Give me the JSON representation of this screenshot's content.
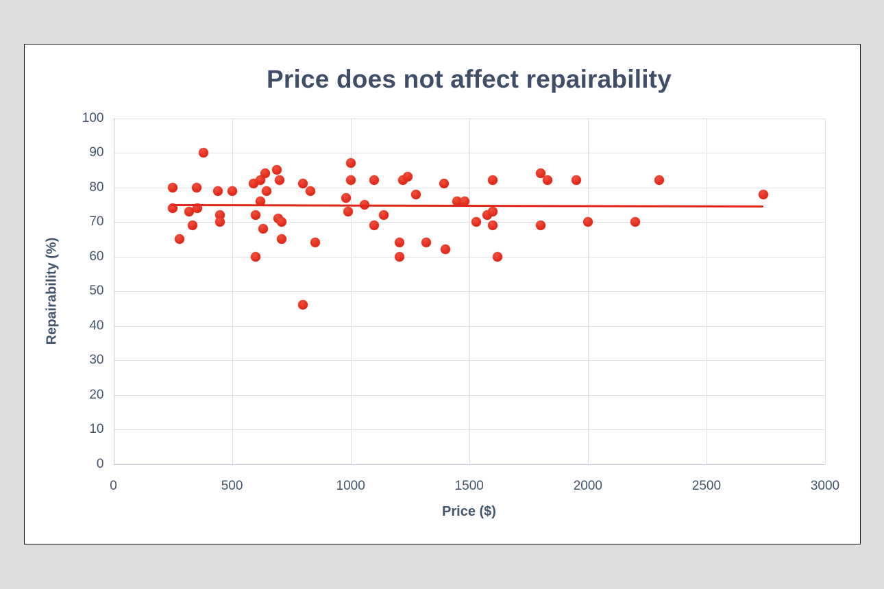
{
  "theme": {
    "page_background": "#dedede",
    "card_background": "#ffffff",
    "card_border": "#111111",
    "title_color": "#3f4d66",
    "tick_color": "#44546a",
    "grid_color": "#dde2ea",
    "axis_line_color": "#bcc6d4",
    "point_color": "#e0301e",
    "trend_color": "#e0261a"
  },
  "chart_data": {
    "type": "scatter",
    "title": "Price does not affect repairability",
    "xlabel": "Price ($)",
    "ylabel": "Repairability (%)",
    "xlim": [
      0,
      3000
    ],
    "ylim": [
      0,
      100
    ],
    "x_ticks": [
      0,
      500,
      1000,
      1500,
      2000,
      2500,
      3000
    ],
    "y_ticks": [
      0,
      10,
      20,
      30,
      40,
      50,
      60,
      70,
      80,
      90,
      100
    ],
    "grid": true,
    "legend": "none",
    "series": [
      {
        "name": "repairability-scatter",
        "type": "scatter",
        "color": "#e0301e",
        "points": [
          [
            250,
            80
          ],
          [
            250,
            74
          ],
          [
            280,
            65
          ],
          [
            320,
            73
          ],
          [
            335,
            69
          ],
          [
            350,
            80
          ],
          [
            355,
            74
          ],
          [
            380,
            90
          ],
          [
            440,
            79
          ],
          [
            450,
            72
          ],
          [
            450,
            70
          ],
          [
            500,
            79
          ],
          [
            590,
            81
          ],
          [
            600,
            72
          ],
          [
            600,
            60
          ],
          [
            620,
            76
          ],
          [
            620,
            82
          ],
          [
            630,
            68
          ],
          [
            640,
            84
          ],
          [
            645,
            79
          ],
          [
            690,
            85
          ],
          [
            700,
            82
          ],
          [
            695,
            71
          ],
          [
            710,
            70
          ],
          [
            710,
            65
          ],
          [
            800,
            81
          ],
          [
            800,
            46
          ],
          [
            830,
            79
          ],
          [
            850,
            64
          ],
          [
            980,
            77
          ],
          [
            990,
            73
          ],
          [
            1000,
            87
          ],
          [
            1000,
            82
          ],
          [
            1060,
            75
          ],
          [
            1100,
            82
          ],
          [
            1100,
            69
          ],
          [
            1140,
            72
          ],
          [
            1205,
            64
          ],
          [
            1205,
            60
          ],
          [
            1220,
            82
          ],
          [
            1240,
            83
          ],
          [
            1275,
            78
          ],
          [
            1320,
            64
          ],
          [
            1395,
            81
          ],
          [
            1400,
            62
          ],
          [
            1450,
            76
          ],
          [
            1480,
            76
          ],
          [
            1530,
            70
          ],
          [
            1575,
            72
          ],
          [
            1600,
            82
          ],
          [
            1600,
            73
          ],
          [
            1600,
            69
          ],
          [
            1620,
            60
          ],
          [
            1800,
            84
          ],
          [
            1830,
            82
          ],
          [
            1800,
            69
          ],
          [
            1950,
            82
          ],
          [
            2000,
            70
          ],
          [
            2200,
            70
          ],
          [
            2300,
            82
          ],
          [
            2740,
            78
          ]
        ]
      },
      {
        "name": "trendline",
        "type": "line",
        "color": "#e0261a",
        "points": [
          [
            240,
            74.9
          ],
          [
            2740,
            74.5
          ]
        ]
      }
    ]
  }
}
